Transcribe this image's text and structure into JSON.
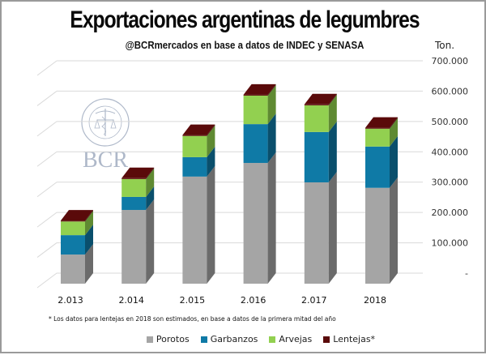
{
  "header": {
    "title": "Exportaciones argentinas de legumbres",
    "subtitle": "@BCRmercados en base a datos de INDEC y SENASA",
    "unit": "Ton."
  },
  "watermark": {
    "seal_text": "BOLSA DE COMERCIO DE ROSARIO",
    "logo_text": "BCR"
  },
  "footnote": "* Los datos para lentejas en 2018 son estimados, en base a datos de la primera mitad del año",
  "chart_data": {
    "type": "bar",
    "stacked": true,
    "style": "3d-column",
    "title": "Exportaciones argentinas de legumbres",
    "subtitle": "@BCRmercados en base a datos de INDEC y SENASA",
    "xlabel": "",
    "ylabel": "Ton.",
    "ylim": [
      0,
      700000
    ],
    "yticks": [
      0,
      100000,
      200000,
      300000,
      400000,
      500000,
      600000,
      700000
    ],
    "ytick_labels": [
      "-",
      "100.000",
      "200.000",
      "300.000",
      "400.000",
      "500.000",
      "600.000",
      "700.000"
    ],
    "y_axis_position": "right",
    "grid": true,
    "legend_position": "bottom",
    "categories": [
      "2.013",
      "2.014",
      "2.015",
      "2.016",
      "2.017",
      "2018"
    ],
    "series": [
      {
        "name": "Porotos",
        "color": "#a5a5a5",
        "side": "#6b6b6b",
        "values": [
          96000,
          243000,
          353000,
          398000,
          334000,
          316000
        ]
      },
      {
        "name": "Garbanzos",
        "color": "#0f7aa6",
        "side": "#0a4f6c",
        "values": [
          64000,
          43000,
          64000,
          128000,
          166000,
          136000
        ]
      },
      {
        "name": "Arvejas",
        "color": "#92d050",
        "side": "#5f8a32",
        "values": [
          45000,
          59000,
          70000,
          94000,
          88000,
          59000
        ]
      },
      {
        "name": "Lentejas*",
        "color": "#5a0a0a",
        "side": "#3d0606",
        "values": [
          3000,
          3000,
          3000,
          3000,
          3000,
          3000
        ]
      }
    ]
  }
}
